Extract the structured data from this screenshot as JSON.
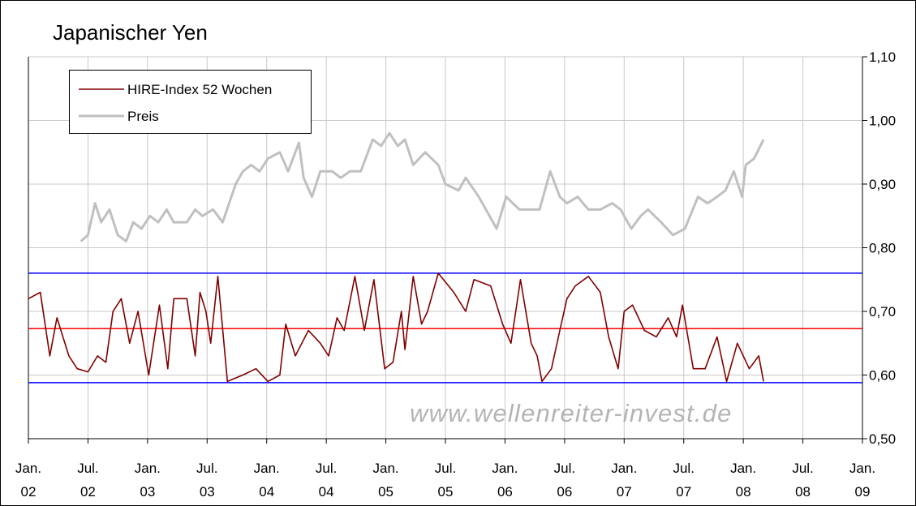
{
  "chart_data": {
    "type": "line",
    "title": "Japanischer Yen",
    "watermark": "www.wellenreiter-invest.de",
    "xlim": [
      2002,
      2009
    ],
    "xticks": [
      {
        "value": 2002,
        "label": "Jan.\n02"
      },
      {
        "value": 2002.5,
        "label": "Jul.\n02"
      },
      {
        "value": 2003,
        "label": "Jan.\n03"
      },
      {
        "value": 2003.5,
        "label": "Jul.\n03"
      },
      {
        "value": 2004,
        "label": "Jan.\n04"
      },
      {
        "value": 2004.5,
        "label": "Jul.\n04"
      },
      {
        "value": 2005,
        "label": "Jan.\n05"
      },
      {
        "value": 2005.5,
        "label": "Jul.\n05"
      },
      {
        "value": 2006,
        "label": "Jan.\n06"
      },
      {
        "value": 2006.5,
        "label": "Jul.\n06"
      },
      {
        "value": 2007,
        "label": "Jan.\n07"
      },
      {
        "value": 2007.5,
        "label": "Jul.\n07"
      },
      {
        "value": 2008,
        "label": "Jan.\n08"
      },
      {
        "value": 2008.5,
        "label": "Jul.\n08"
      },
      {
        "value": 2009,
        "label": "Jan.\n09"
      }
    ],
    "ylim": [
      0.5,
      1.1
    ],
    "yticks": [
      {
        "value": 0.5,
        "label": "0,50"
      },
      {
        "value": 0.6,
        "label": "0,60"
      },
      {
        "value": 0.7,
        "label": "0,70"
      },
      {
        "value": 0.8,
        "label": "0,80"
      },
      {
        "value": 0.9,
        "label": "0,90"
      },
      {
        "value": 1.0,
        "label": "1,00"
      },
      {
        "value": 1.1,
        "label": "1,10"
      }
    ],
    "grid": true,
    "legend": "top-left",
    "hlines": [
      {
        "value": 0.76,
        "color": "#0000ff"
      },
      {
        "value": 0.673,
        "color": "#ff0000"
      },
      {
        "value": 0.588,
        "color": "#0000ff"
      }
    ],
    "series": [
      {
        "name": "HIRE-Index 52 Wochen",
        "color": "#800000",
        "x": [
          2002.0,
          2002.1,
          2002.18,
          2002.24,
          2002.34,
          2002.41,
          2002.5,
          2002.58,
          2002.65,
          2002.71,
          2002.78,
          2002.85,
          2002.92,
          2003.01,
          2003.1,
          2003.17,
          2003.22,
          2003.33,
          2003.4,
          2003.44,
          2003.49,
          2003.53,
          2003.59,
          2003.67,
          2003.8,
          2003.91,
          2004.01,
          2004.11,
          2004.16,
          2004.24,
          2004.35,
          2004.45,
          2004.52,
          2004.59,
          2004.65,
          2004.74,
          2004.82,
          2004.9,
          2004.99,
          2005.06,
          2005.13,
          2005.16,
          2005.23,
          2005.3,
          2005.35,
          2005.44,
          2005.57,
          2005.67,
          2005.74,
          2005.88,
          2005.98,
          2006.05,
          2006.13,
          2006.22,
          2006.27,
          2006.31,
          2006.39,
          2006.46,
          2006.52,
          2006.59,
          2006.7,
          2006.8,
          2006.87,
          2006.95,
          2007.0,
          2007.07,
          2007.17,
          2007.27,
          2007.37,
          2007.44,
          2007.49,
          2007.58,
          2007.68,
          2007.78,
          2007.86,
          2007.95,
          2008.05,
          2008.13,
          2008.17
        ],
        "values": [
          0.72,
          0.73,
          0.63,
          0.69,
          0.63,
          0.61,
          0.605,
          0.63,
          0.62,
          0.7,
          0.72,
          0.65,
          0.7,
          0.6,
          0.71,
          0.61,
          0.72,
          0.72,
          0.63,
          0.73,
          0.7,
          0.65,
          0.755,
          0.59,
          0.6,
          0.61,
          0.59,
          0.6,
          0.68,
          0.63,
          0.67,
          0.65,
          0.63,
          0.69,
          0.67,
          0.755,
          0.67,
          0.75,
          0.61,
          0.62,
          0.7,
          0.64,
          0.755,
          0.68,
          0.7,
          0.76,
          0.73,
          0.7,
          0.75,
          0.74,
          0.68,
          0.65,
          0.75,
          0.65,
          0.63,
          0.59,
          0.61,
          0.67,
          0.72,
          0.74,
          0.755,
          0.73,
          0.66,
          0.61,
          0.7,
          0.71,
          0.67,
          0.66,
          0.69,
          0.66,
          0.71,
          0.61,
          0.61,
          0.66,
          0.59,
          0.65,
          0.61,
          0.63,
          0.59
        ]
      },
      {
        "name": "Preis",
        "color": "#c0c0c0",
        "x": [
          2002.44,
          2002.5,
          2002.56,
          2002.61,
          2002.68,
          2002.75,
          2002.82,
          2002.88,
          2002.95,
          2003.02,
          2003.09,
          2003.16,
          2003.22,
          2003.33,
          2003.4,
          2003.46,
          2003.55,
          2003.63,
          2003.74,
          2003.8,
          2003.87,
          2003.94,
          2004.01,
          2004.11,
          2004.18,
          2004.27,
          2004.31,
          2004.38,
          2004.45,
          2004.55,
          2004.62,
          2004.7,
          2004.79,
          2004.89,
          2004.96,
          2005.03,
          2005.1,
          2005.16,
          2005.23,
          2005.33,
          2005.44,
          2005.5,
          2005.61,
          2005.67,
          2005.78,
          2005.84,
          2005.93,
          2006.01,
          2006.12,
          2006.22,
          2006.29,
          2006.38,
          2006.46,
          2006.52,
          2006.61,
          2006.7,
          2006.8,
          2006.9,
          2006.97,
          2007.06,
          2007.14,
          2007.2,
          2007.31,
          2007.41,
          2007.51,
          2007.62,
          2007.7,
          2007.78,
          2007.85,
          2007.92,
          2007.99,
          2008.02,
          2008.09,
          2008.17
        ],
        "values": [
          0.81,
          0.82,
          0.87,
          0.84,
          0.86,
          0.82,
          0.81,
          0.84,
          0.83,
          0.85,
          0.84,
          0.86,
          0.84,
          0.84,
          0.86,
          0.85,
          0.86,
          0.84,
          0.9,
          0.92,
          0.93,
          0.92,
          0.94,
          0.95,
          0.92,
          0.965,
          0.91,
          0.88,
          0.92,
          0.92,
          0.91,
          0.92,
          0.92,
          0.97,
          0.96,
          0.98,
          0.96,
          0.97,
          0.93,
          0.95,
          0.93,
          0.9,
          0.89,
          0.91,
          0.88,
          0.86,
          0.83,
          0.88,
          0.86,
          0.86,
          0.86,
          0.92,
          0.88,
          0.87,
          0.88,
          0.86,
          0.86,
          0.87,
          0.86,
          0.83,
          0.85,
          0.86,
          0.84,
          0.82,
          0.83,
          0.88,
          0.87,
          0.88,
          0.89,
          0.92,
          0.88,
          0.93,
          0.94,
          0.97
        ]
      }
    ]
  }
}
